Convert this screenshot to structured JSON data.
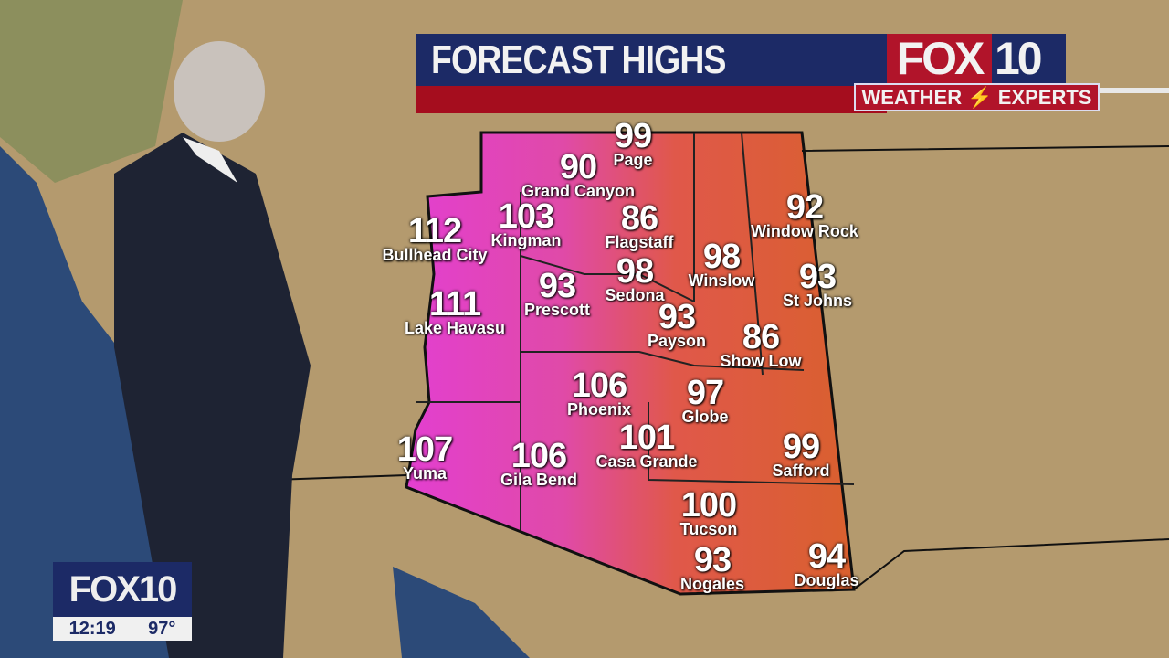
{
  "header": {
    "title": "FORECAST HIGHS",
    "logo_fox": "FOX",
    "logo_num": "10",
    "tagline_left": "WEATHER",
    "tagline_right": "EXPERTS"
  },
  "bug": {
    "logo": "FOX10",
    "time": "12:19",
    "temp": "97°"
  },
  "colors": {
    "header_blue": "#1c2a66",
    "header_red": "#a50d1e",
    "hot": "#e23fc8",
    "warm": "#e0583a"
  },
  "cities": [
    {
      "name": "Page",
      "temp": "99"
    },
    {
      "name": "Grand Canyon",
      "temp": "90"
    },
    {
      "name": "Bullhead City",
      "temp": "112"
    },
    {
      "name": "Kingman",
      "temp": "103"
    },
    {
      "name": "Flagstaff",
      "temp": "86"
    },
    {
      "name": "Window Rock",
      "temp": "92"
    },
    {
      "name": "Winslow",
      "temp": "98"
    },
    {
      "name": "Sedona",
      "temp": "98"
    },
    {
      "name": "St Johns",
      "temp": "93"
    },
    {
      "name": "Prescott",
      "temp": "93"
    },
    {
      "name": "Lake Havasu",
      "temp": "111"
    },
    {
      "name": "Payson",
      "temp": "93"
    },
    {
      "name": "Show Low",
      "temp": "86"
    },
    {
      "name": "Phoenix",
      "temp": "106"
    },
    {
      "name": "Globe",
      "temp": "97"
    },
    {
      "name": "Casa Grande",
      "temp": "101"
    },
    {
      "name": "Safford",
      "temp": "99"
    },
    {
      "name": "Yuma",
      "temp": "107"
    },
    {
      "name": "Gila Bend",
      "temp": "106"
    },
    {
      "name": "Tucson",
      "temp": "100"
    },
    {
      "name": "Nogales",
      "temp": "93"
    },
    {
      "name": "Douglas",
      "temp": "94"
    }
  ]
}
